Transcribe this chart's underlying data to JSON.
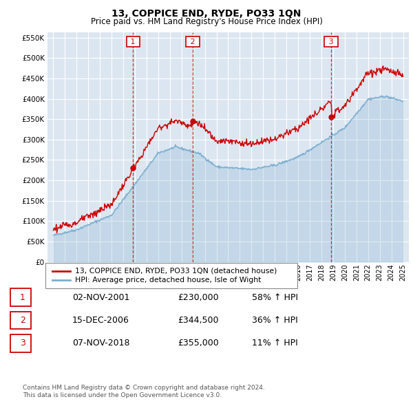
{
  "title": "13, COPPICE END, RYDE, PO33 1QN",
  "subtitle": "Price paid vs. HM Land Registry's House Price Index (HPI)",
  "legend_line1": "13, COPPICE END, RYDE, PO33 1QN (detached house)",
  "legend_line2": "HPI: Average price, detached house, Isle of Wight",
  "footer1": "Contains HM Land Registry data © Crown copyright and database right 2024.",
  "footer2": "This data is licensed under the Open Government Licence v3.0.",
  "transactions": [
    {
      "num": 1,
      "date": "02-NOV-2001",
      "price": "£230,000",
      "pct": "58% ↑ HPI"
    },
    {
      "num": 2,
      "date": "15-DEC-2006",
      "price": "£344,500",
      "pct": "36% ↑ HPI"
    },
    {
      "num": 3,
      "date": "07-NOV-2018",
      "price": "£355,000",
      "pct": "11% ↑ HPI"
    }
  ],
  "transaction_dates_decimal": [
    2001.84,
    2006.96,
    2018.84
  ],
  "transaction_prices": [
    230000,
    344500,
    355000
  ],
  "ylim": [
    0,
    562500
  ],
  "yticks": [
    0,
    50000,
    100000,
    150000,
    200000,
    250000,
    300000,
    350000,
    400000,
    450000,
    500000,
    550000
  ],
  "background_color": "#dce6f1",
  "grid_color": "#ffffff",
  "red_line_color": "#cc0000",
  "blue_line_color": "#7aadcf",
  "vline_color": "#cc0000",
  "box_color": "#cc0000",
  "outer_bg": "#ffffff",
  "xstart": 1995,
  "xend": 2025
}
